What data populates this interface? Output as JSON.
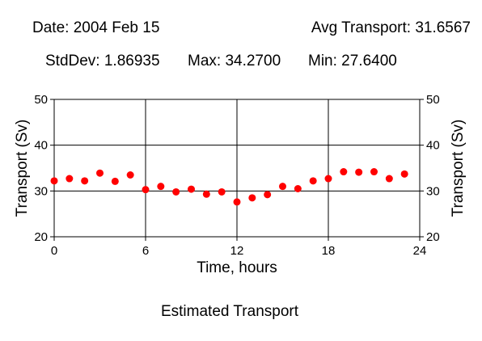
{
  "header": {
    "date": "Date: 2004 Feb 15",
    "avg": "Avg Transport: 31.6567"
  },
  "stats": {
    "stddev": "StdDev: 1.86935",
    "max": "Max: 34.2700",
    "min": "Min: 27.6400"
  },
  "caption": "Estimated Transport",
  "colors": {
    "points": "#ff0000",
    "axes": "#000000",
    "background": "#ffffff"
  },
  "chart_data": {
    "type": "scatter",
    "xlabel": "Time, hours",
    "ylabel": "Transport (Sv)",
    "ylabel_right": "Transport (Sv)",
    "xlim": [
      0,
      24
    ],
    "ylim": [
      20,
      50
    ],
    "xticks": [
      0,
      6,
      12,
      18,
      24
    ],
    "yticks": [
      20,
      30,
      40,
      50
    ],
    "grid": true,
    "series": [
      {
        "x": [
          0,
          1,
          2,
          3,
          4,
          5,
          6,
          7,
          8,
          9,
          10,
          11,
          12,
          13,
          14,
          15,
          16,
          17,
          18,
          19,
          20,
          21,
          22,
          23
        ],
        "y": [
          32.2,
          32.7,
          32.2,
          33.9,
          32.1,
          33.5,
          30.3,
          31.0,
          29.8,
          30.4,
          29.3,
          29.8,
          27.6,
          28.5,
          29.2,
          31.0,
          30.5,
          32.2,
          32.7,
          34.2,
          34.1,
          34.2,
          32.7,
          33.7
        ]
      }
    ]
  }
}
